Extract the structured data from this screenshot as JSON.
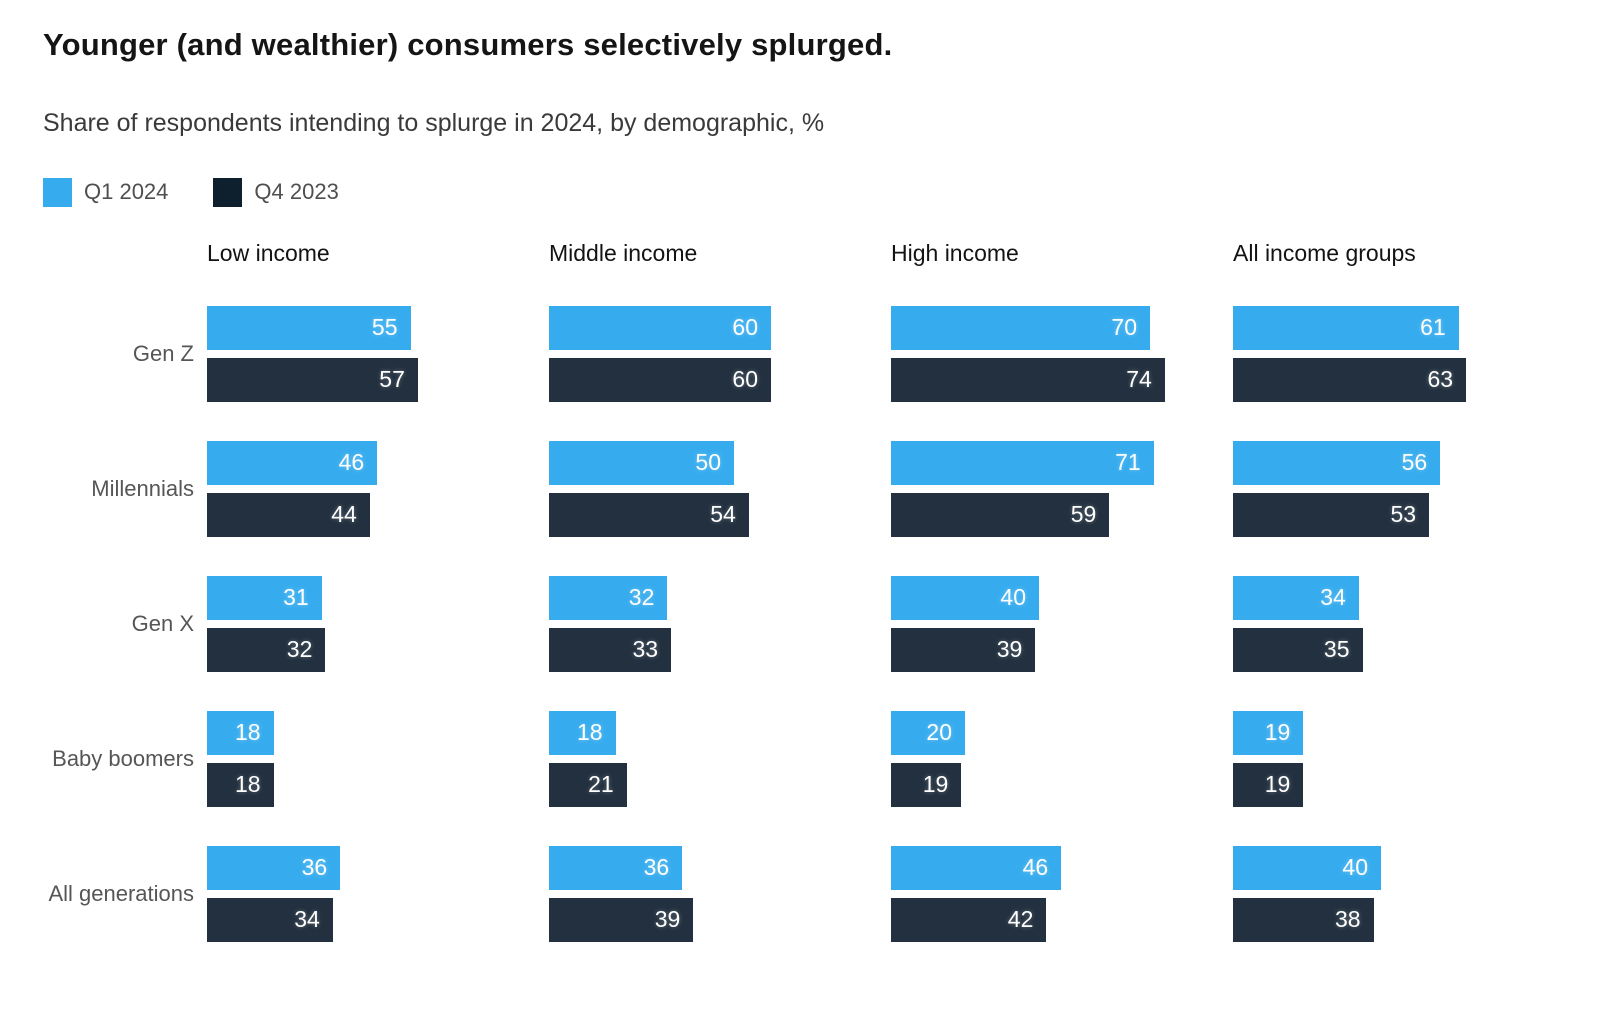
{
  "chart_data": {
    "type": "bar",
    "orientation": "horizontal",
    "title": "Younger (and wealthier) consumers selectively splurged.",
    "subtitle": "Share of respondents intending to splurge in 2024, by demographic, %",
    "unit": "%",
    "grid": false,
    "axes_visible": false,
    "value_labels": "inside-right",
    "legend_position": "top-left",
    "xlim": [
      0,
      92
    ],
    "legend": [
      {
        "name": "Q1 2024",
        "color": "#36acee"
      },
      {
        "name": "Q4 2023",
        "color": "#0e1f2d"
      }
    ],
    "column_groups": [
      "Low income",
      "Middle income",
      "High income",
      "All income groups"
    ],
    "categories": [
      "Gen Z",
      "Millennials",
      "Gen X",
      "Baby boomers",
      "All generations"
    ],
    "series": [
      {
        "name": "Q1 2024",
        "color": "#36acee",
        "values_by_group": [
          [
            55,
            46,
            31,
            18,
            36
          ],
          [
            60,
            50,
            32,
            18,
            36
          ],
          [
            70,
            71,
            40,
            20,
            46
          ],
          [
            61,
            56,
            34,
            19,
            40
          ]
        ]
      },
      {
        "name": "Q4 2023",
        "color": "#22303f",
        "values_by_group": [
          [
            57,
            44,
            32,
            18,
            34
          ],
          [
            60,
            54,
            33,
            21,
            39
          ],
          [
            74,
            59,
            39,
            19,
            42
          ],
          [
            63,
            53,
            35,
            19,
            38
          ]
        ]
      }
    ]
  }
}
